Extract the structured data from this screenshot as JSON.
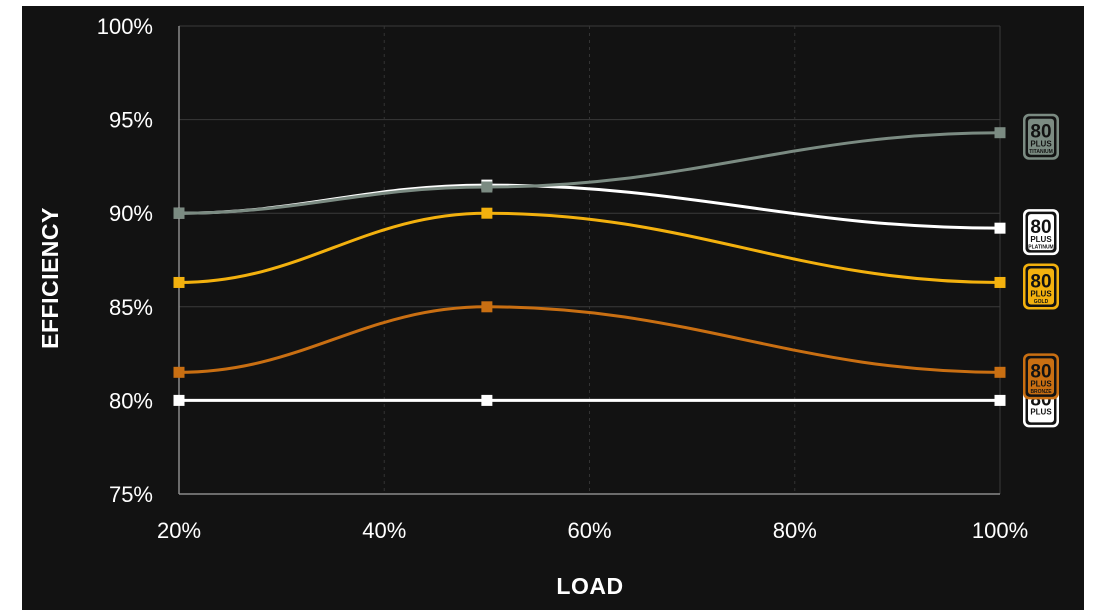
{
  "chart_data": {
    "type": "line",
    "xlabel": "LOAD",
    "ylabel": "EFFICIENCY",
    "x": [
      20,
      50,
      100
    ],
    "xlim": [
      20,
      100
    ],
    "ylim": [
      75,
      100
    ],
    "x_ticks": [
      "20%",
      "40%",
      "60%",
      "80%",
      "100%"
    ],
    "x_tick_values": [
      20,
      40,
      60,
      80,
      100
    ],
    "y_ticks": [
      "75%",
      "80%",
      "85%",
      "90%",
      "95%",
      "100%"
    ],
    "y_tick_values": [
      75,
      80,
      85,
      90,
      95,
      100
    ],
    "grid": true,
    "legend": "right (badges)",
    "series": [
      {
        "name": "80 PLUS",
        "tier": "",
        "values": [
          80,
          80,
          80
        ],
        "color": "#ffffff"
      },
      {
        "name": "80 PLUS BRONZE",
        "tier": "BRONZE",
        "values": [
          81.5,
          85,
          81.5
        ],
        "color": "#c96f12"
      },
      {
        "name": "80 PLUS GOLD",
        "tier": "GOLD",
        "values": [
          86.3,
          90,
          86.3
        ],
        "color": "#f3b10e"
      },
      {
        "name": "80 PLUS PLATINUM",
        "tier": "PLATINUM",
        "values": [
          90,
          91.5,
          89.2
        ],
        "color": "#ffffff"
      },
      {
        "name": "80 PLUS TITANIUM",
        "tier": "TITANIUM",
        "values": [
          90,
          91.4,
          94.3
        ],
        "color": "#7b8b82"
      }
    ],
    "badge_text": {
      "big": "80",
      "plus": "PLUS"
    }
  }
}
